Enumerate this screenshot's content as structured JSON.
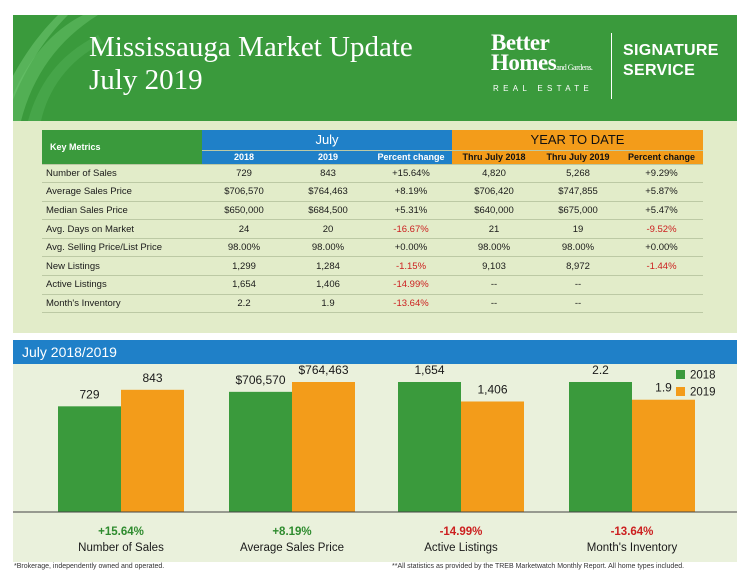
{
  "header": {
    "title_line1": "Mississauga Market Update",
    "title_line2": "July 2019",
    "brand_line1": "Better",
    "brand_line2": "Homes",
    "brand_small": "and Gardens.",
    "brand_sub": "REAL ESTATE",
    "signature_line1": "SIGNATURE",
    "signature_line2": "SERVICE"
  },
  "table": {
    "key_metrics_label": "Key Metrics",
    "july_label": "July",
    "ytd_label": "YEAR TO DATE",
    "subheaders": [
      "2018",
      "2019",
      "Percent change",
      "Thru July 2018",
      "Thru July 2019",
      "Percent change"
    ],
    "rows": [
      {
        "metric": "Number of Sales",
        "cells": [
          "729",
          "843",
          "+15.64%",
          "4,820",
          "5,268",
          "+9.29%"
        ]
      },
      {
        "metric": "Average Sales Price",
        "cells": [
          "$706,570",
          "$764,463",
          "+8.19%",
          "$706,420",
          "$747,855",
          "+5.87%"
        ]
      },
      {
        "metric": "Median Sales Price",
        "cells": [
          "$650,000",
          "$684,500",
          "+5.31%",
          "$640,000",
          "$675,000",
          "+5.47%"
        ]
      },
      {
        "metric": "Avg. Days on Market",
        "cells": [
          "24",
          "20",
          "-16.67%",
          "21",
          "19",
          "-9.52%"
        ]
      },
      {
        "metric": "Avg. Selling Price/List Price",
        "cells": [
          "98.00%",
          "98.00%",
          "+0.00%",
          "98.00%",
          "98.00%",
          "+0.00%"
        ]
      },
      {
        "metric": "New Listings",
        "cells": [
          "1,299",
          "1,284",
          "-1.15%",
          "9,103",
          "8,972",
          "-1.44%"
        ]
      },
      {
        "metric": "Active Listings",
        "cells": [
          "1,654",
          "1,406",
          "-14.99%",
          "--",
          "--",
          ""
        ]
      },
      {
        "metric": "Month's Inventory",
        "cells": [
          "2.2",
          "1.9",
          "-13.64%",
          "--",
          "--",
          ""
        ]
      }
    ]
  },
  "section_title": "July 2018/2019",
  "colors": {
    "green": "#3a9a3c",
    "blue": "#1f80c8",
    "orange": "#f39c1a",
    "red": "#cc2020",
    "positive": "#2e8b2e"
  },
  "chart_data": {
    "type": "bar",
    "categories": [
      "Number of Sales",
      "Average Sales Price",
      "Active Listings",
      "Month's Inventory"
    ],
    "series": [
      {
        "name": "2018",
        "values": [
          729,
          706570,
          1654,
          2.2
        ],
        "labels": [
          "729",
          "$706,570",
          "1,654",
          "2.2"
        ]
      },
      {
        "name": "2019",
        "values": [
          843,
          764463,
          1406,
          1.9
        ],
        "labels": [
          "843",
          "$764,463",
          "1,406",
          "1.9"
        ]
      }
    ],
    "changes": [
      "+15.64%",
      "+8.19%",
      "-14.99%",
      "-13.64%"
    ],
    "legend_position": "top-right",
    "grid": false
  },
  "footer": {
    "left": "*Brokerage, independently owned and operated.",
    "right": "**All statistics as provided by the TREB Marketwatch Monthly Report. All home types included."
  }
}
